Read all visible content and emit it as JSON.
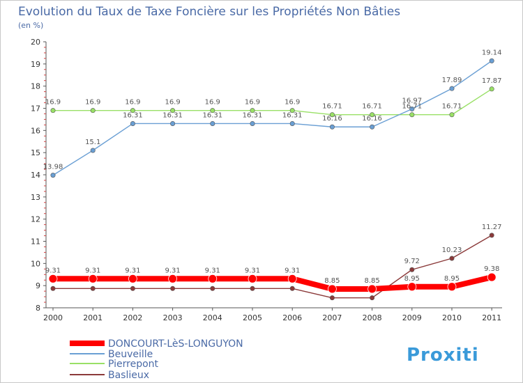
{
  "chart_data": {
    "type": "line",
    "title": "Evolution du Taux de Taxe Foncière sur les Propriétés Non Bâties",
    "ylabel": "(en %)",
    "xlabel": "",
    "ylim": [
      8,
      20
    ],
    "yticks": [
      "8",
      "9",
      "10",
      "11",
      "12",
      "13",
      "14",
      "15",
      "16",
      "17",
      "18",
      "19",
      "20"
    ],
    "categories": [
      "2000",
      "2001",
      "2002",
      "2003",
      "2004",
      "2005",
      "2006",
      "2007",
      "2008",
      "2009",
      "2010",
      "2011"
    ],
    "series": [
      {
        "name": "DONCOURT-LèS-LONGUYON",
        "color": "#ff0000",
        "values": [
          9.31,
          9.31,
          9.31,
          9.31,
          9.31,
          9.31,
          9.31,
          8.85,
          8.85,
          8.95,
          8.95,
          9.38
        ],
        "labels": [
          "9.31",
          "9.31",
          "9.31",
          "9.31",
          "9.31",
          "9.31",
          "9.31",
          "8.85",
          "8.85",
          "8.95",
          "8.95",
          "9.38"
        ]
      },
      {
        "name": "Beuveille",
        "color": "#6a9fd4",
        "values": [
          13.98,
          15.1,
          16.31,
          16.31,
          16.31,
          16.31,
          16.31,
          16.16,
          16.16,
          16.97,
          17.89,
          19.14
        ],
        "labels": [
          "13.98",
          "15.1",
          "16.31",
          "16.31",
          "16.31",
          "16.31",
          "16.31",
          "16.16",
          "16.16",
          "16.97",
          "17.89",
          "19.14"
        ]
      },
      {
        "name": "Pierrepont",
        "color": "#99e066",
        "values": [
          16.9,
          16.9,
          16.9,
          16.9,
          16.9,
          16.9,
          16.9,
          16.71,
          16.71,
          16.71,
          16.71,
          17.87
        ],
        "labels": [
          "16.9",
          "16.9",
          "16.9",
          "16.9",
          "16.9",
          "16.9",
          "16.9",
          "16.71",
          "16.71",
          "16.71",
          "16.71",
          "17.87"
        ]
      },
      {
        "name": "Baslieux",
        "color": "#8b3a3a",
        "values": [
          8.87,
          8.87,
          8.87,
          8.87,
          8.87,
          8.87,
          8.87,
          8.45,
          8.45,
          9.72,
          10.23,
          11.27
        ],
        "labels": [
          "",
          "",
          "",
          "",
          "",
          "",
          "",
          "",
          "",
          "9.72",
          "10.23",
          "11.27"
        ]
      }
    ],
    "legend_position": "bottom-left",
    "grid": false
  },
  "logo": {
    "text": "Proxiti"
  },
  "colors": {
    "title": "#4a6aa6",
    "frame": "#c8c8c8"
  }
}
